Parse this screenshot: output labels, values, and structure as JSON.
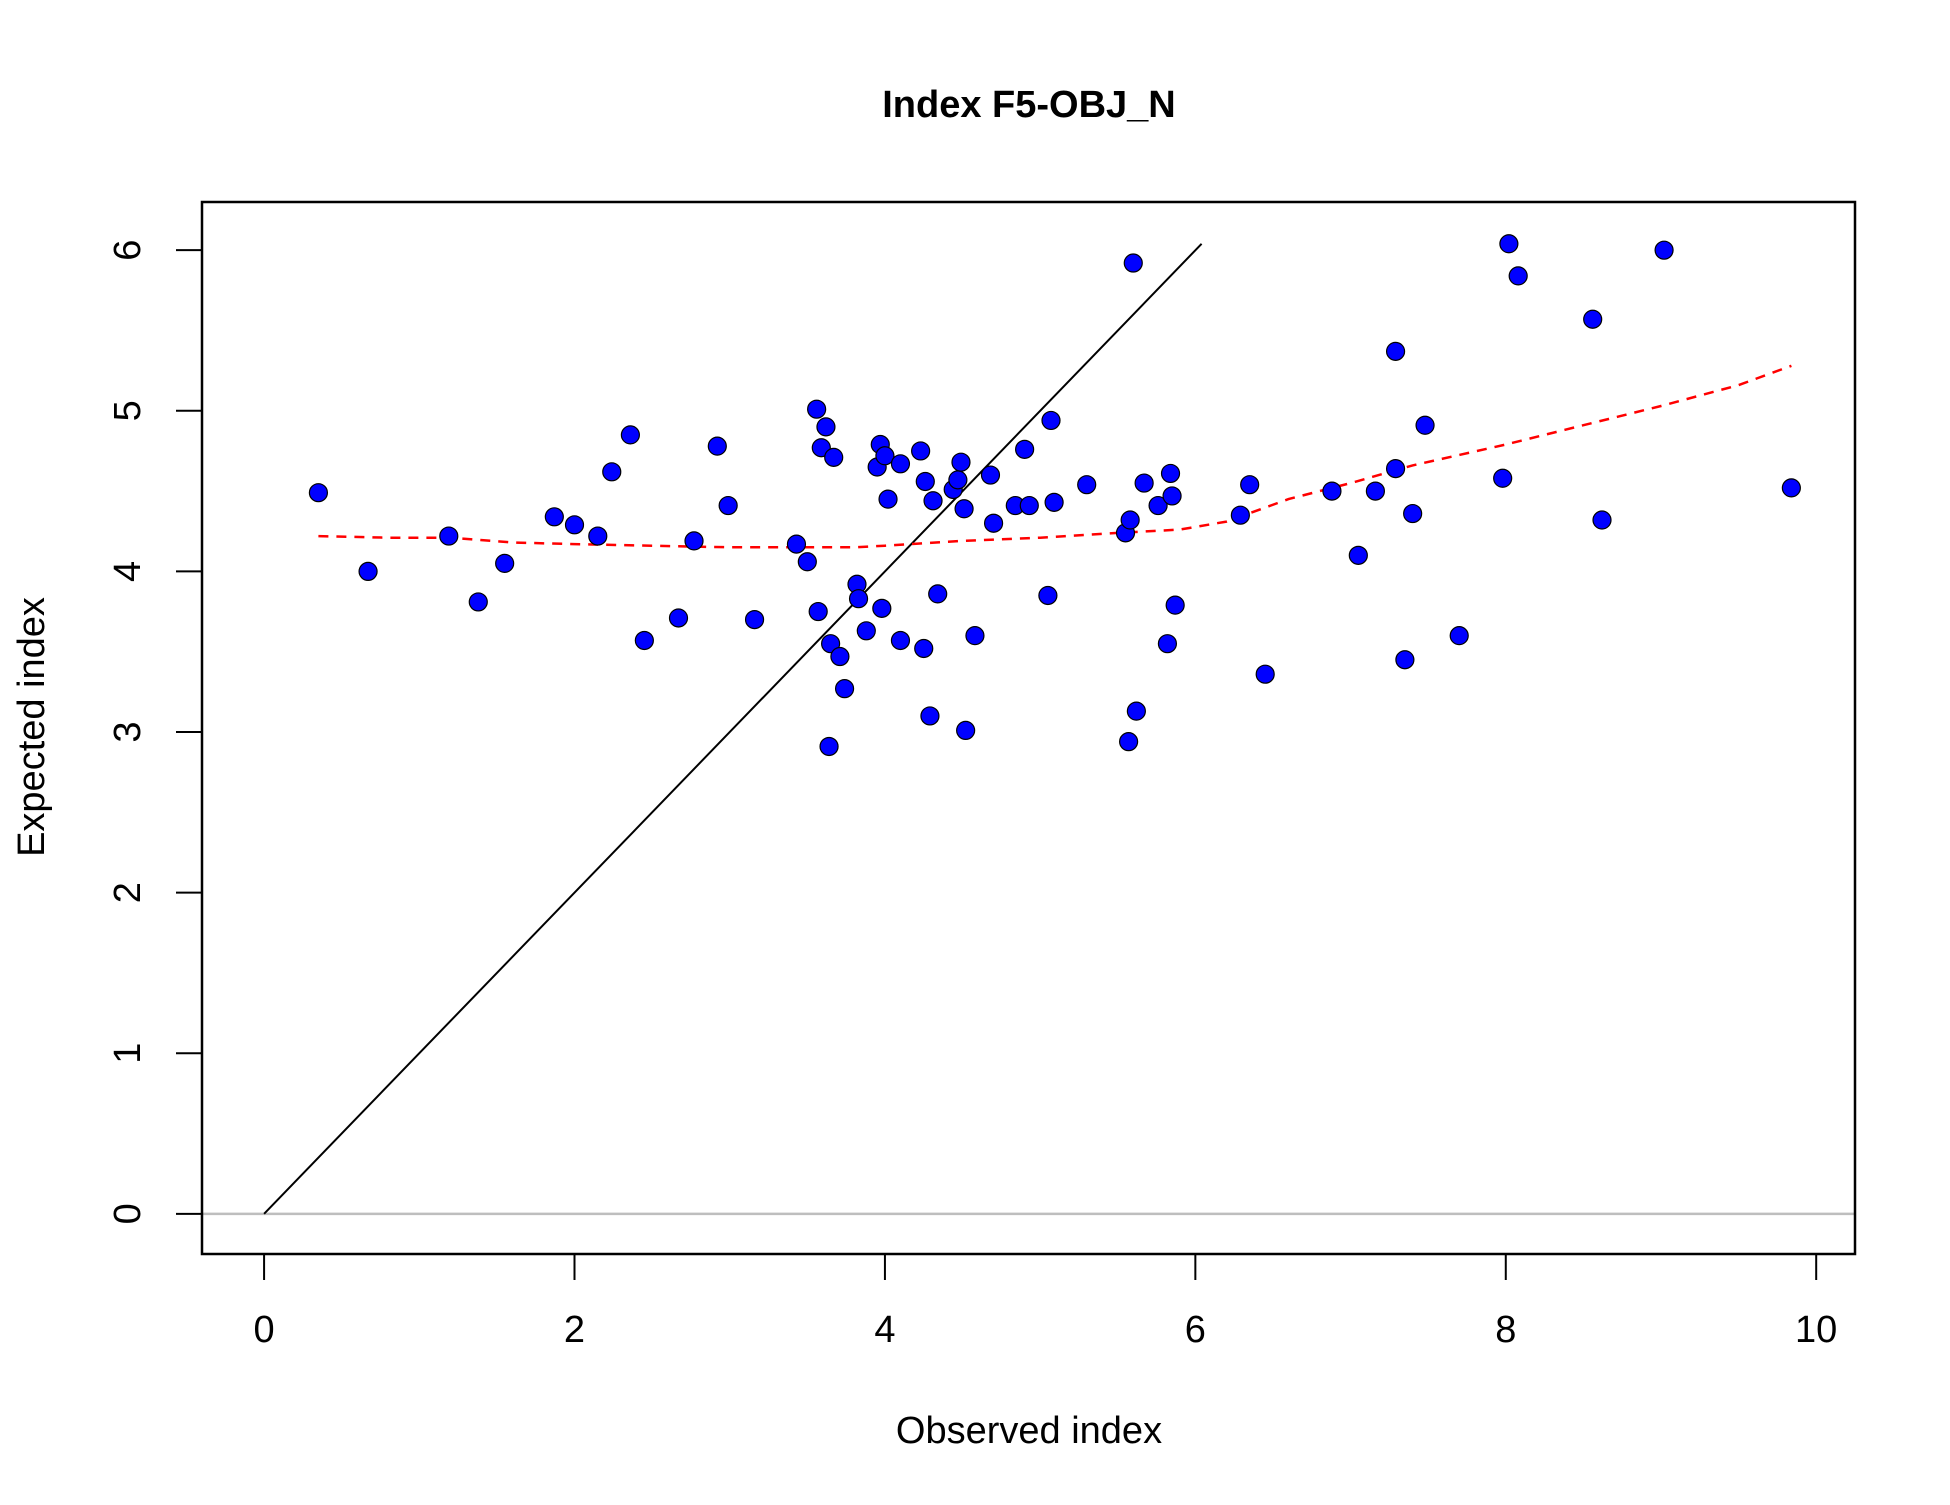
{
  "chart_data": {
    "type": "scatter",
    "title": "Index F5-OBJ_N",
    "xlabel": "Observed index",
    "ylabel": "Expected index",
    "xlim": [
      -0.4,
      10.25
    ],
    "ylim": [
      -0.25,
      6.3
    ],
    "x_ticks": [
      0,
      2,
      4,
      6,
      8,
      10
    ],
    "y_ticks": [
      0,
      1,
      2,
      3,
      4,
      5,
      6
    ],
    "grid": false,
    "legend": "none",
    "colors": {
      "points": "#0000ff",
      "point_border": "#000000",
      "identity_line": "#000000",
      "smooth_line": "#ff0000",
      "zero_line": "#bebebe"
    },
    "series": [
      {
        "type": "scatter",
        "points": [
          [
            0.35,
            4.49
          ],
          [
            0.67,
            4.0
          ],
          [
            1.19,
            4.22
          ],
          [
            1.38,
            3.81
          ],
          [
            1.55,
            4.05
          ],
          [
            1.87,
            4.34
          ],
          [
            2.0,
            4.29
          ],
          [
            2.15,
            4.22
          ],
          [
            2.24,
            4.62
          ],
          [
            2.36,
            4.85
          ],
          [
            2.45,
            3.57
          ],
          [
            2.67,
            3.71
          ],
          [
            2.77,
            4.19
          ],
          [
            2.92,
            4.78
          ],
          [
            2.99,
            4.41
          ],
          [
            3.16,
            3.7
          ],
          [
            3.43,
            4.17
          ],
          [
            3.5,
            4.06
          ],
          [
            3.56,
            5.01
          ],
          [
            3.57,
            3.75
          ],
          [
            3.59,
            4.77
          ],
          [
            3.62,
            4.9
          ],
          [
            3.64,
            2.91
          ],
          [
            3.65,
            3.55
          ],
          [
            3.67,
            4.71
          ],
          [
            3.71,
            3.47
          ],
          [
            3.74,
            3.27
          ],
          [
            3.82,
            3.92
          ],
          [
            3.83,
            3.83
          ],
          [
            3.88,
            3.63
          ],
          [
            3.95,
            4.65
          ],
          [
            3.97,
            4.79
          ],
          [
            3.98,
            3.77
          ],
          [
            4.0,
            4.72
          ],
          [
            4.02,
            4.45
          ],
          [
            4.1,
            4.67
          ],
          [
            4.1,
            3.57
          ],
          [
            4.23,
            4.75
          ],
          [
            4.25,
            3.52
          ],
          [
            4.26,
            4.56
          ],
          [
            4.29,
            3.1
          ],
          [
            4.31,
            4.44
          ],
          [
            4.34,
            3.86
          ],
          [
            4.44,
            4.51
          ],
          [
            4.47,
            4.57
          ],
          [
            4.49,
            4.68
          ],
          [
            4.51,
            4.39
          ],
          [
            4.52,
            3.01
          ],
          [
            4.58,
            3.6
          ],
          [
            4.68,
            4.6
          ],
          [
            4.7,
            4.3
          ],
          [
            4.84,
            4.41
          ],
          [
            4.9,
            4.76
          ],
          [
            4.93,
            4.41
          ],
          [
            5.05,
            3.85
          ],
          [
            5.07,
            4.94
          ],
          [
            5.09,
            4.43
          ],
          [
            5.3,
            4.54
          ],
          [
            5.55,
            4.24
          ],
          [
            5.57,
            2.94
          ],
          [
            5.58,
            4.32
          ],
          [
            5.6,
            5.92
          ],
          [
            5.62,
            3.13
          ],
          [
            5.67,
            4.55
          ],
          [
            5.76,
            4.41
          ],
          [
            5.82,
            3.55
          ],
          [
            5.84,
            4.61
          ],
          [
            5.85,
            4.47
          ],
          [
            5.87,
            3.79
          ],
          [
            6.29,
            4.35
          ],
          [
            6.35,
            4.54
          ],
          [
            6.45,
            3.36
          ],
          [
            6.88,
            4.5
          ],
          [
            7.05,
            4.1
          ],
          [
            7.16,
            4.5
          ],
          [
            7.29,
            5.37
          ],
          [
            7.29,
            4.64
          ],
          [
            7.35,
            3.45
          ],
          [
            7.4,
            4.36
          ],
          [
            7.48,
            4.91
          ],
          [
            7.7,
            3.6
          ],
          [
            7.98,
            4.58
          ],
          [
            8.02,
            6.04
          ],
          [
            8.08,
            5.84
          ],
          [
            8.56,
            5.57
          ],
          [
            8.62,
            4.32
          ],
          [
            9.02,
            6.0
          ],
          [
            9.84,
            4.52
          ]
        ]
      },
      {
        "type": "line",
        "style": "solid",
        "points": [
          [
            0,
            0
          ],
          [
            6.04,
            6.04
          ]
        ]
      },
      {
        "type": "line",
        "style": "dashed",
        "points": [
          [
            0.35,
            4.22
          ],
          [
            0.8,
            4.21
          ],
          [
            1.2,
            4.21
          ],
          [
            1.6,
            4.18
          ],
          [
            2.0,
            4.17
          ],
          [
            2.5,
            4.16
          ],
          [
            3.0,
            4.15
          ],
          [
            3.5,
            4.15
          ],
          [
            3.8,
            4.15
          ],
          [
            4.0,
            4.16
          ],
          [
            4.5,
            4.19
          ],
          [
            5.0,
            4.21
          ],
          [
            5.5,
            4.24
          ],
          [
            5.9,
            4.26
          ],
          [
            6.2,
            4.31
          ],
          [
            6.6,
            4.45
          ],
          [
            7.0,
            4.55
          ],
          [
            7.4,
            4.66
          ],
          [
            8.0,
            4.79
          ],
          [
            8.5,
            4.91
          ],
          [
            9.0,
            5.03
          ],
          [
            9.5,
            5.16
          ],
          [
            9.84,
            5.28
          ]
        ]
      },
      {
        "type": "hline",
        "y": 0
      }
    ]
  }
}
